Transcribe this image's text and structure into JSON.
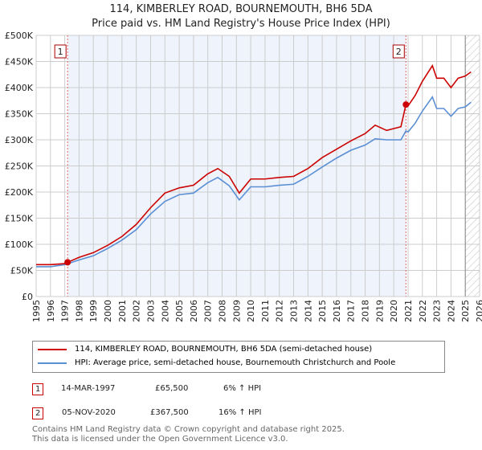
{
  "chart_data": {
    "type": "line",
    "title": "114, KIMBERLEY ROAD, BOURNEMOUTH, BH6 5DA",
    "subtitle": "Price paid vs. HM Land Registry's House Price Index (HPI)",
    "xlim": [
      1995,
      2026
    ],
    "ylim": [
      0,
      500000
    ],
    "yticks": [
      "£0",
      "£50K",
      "£100K",
      "£150K",
      "£200K",
      "£250K",
      "£300K",
      "£350K",
      "£400K",
      "£450K",
      "£500K"
    ],
    "xticks": [
      "1995",
      "1996",
      "1997",
      "1998",
      "1999",
      "2000",
      "2001",
      "2002",
      "2003",
      "2004",
      "2005",
      "2006",
      "2007",
      "2008",
      "2009",
      "2010",
      "2011",
      "2012",
      "2013",
      "2014",
      "2015",
      "2016",
      "2017",
      "2018",
      "2019",
      "2020",
      "2021",
      "2022",
      "2023",
      "2024",
      "2025",
      "2026"
    ],
    "series": [
      {
        "name": "114, KIMBERLEY ROAD, BOURNEMOUTH, BH6 5DA (semi-detached house)",
        "color": "#cc0000",
        "x": [
          1995,
          1996,
          1997,
          1997.2,
          1998,
          1999,
          2000,
          2001,
          2002,
          2003,
          2004,
          2005,
          2006,
          2007,
          2007.7,
          2008.5,
          2009.2,
          2010,
          2011,
          2012,
          2013,
          2014,
          2015,
          2016,
          2017,
          2018,
          2018.7,
          2019.5,
          2020.5,
          2020.85,
          2021,
          2021.5,
          2022,
          2022.7,
          2023,
          2023.5,
          2024,
          2024.5,
          2025,
          2025.4
        ],
        "y": [
          61000,
          61000,
          63000,
          65500,
          75000,
          84000,
          98000,
          115000,
          138000,
          170000,
          198000,
          208000,
          213000,
          235000,
          245000,
          230000,
          198000,
          225000,
          225000,
          228000,
          230000,
          245000,
          266000,
          282000,
          298000,
          312000,
          328000,
          318000,
          325000,
          367500,
          365000,
          385000,
          412000,
          442000,
          418000,
          418000,
          400000,
          418000,
          422000,
          430000
        ]
      },
      {
        "name": "HPI: Average price, semi-detached house, Bournemouth Christchurch and Poole",
        "color": "#5b8fd4",
        "x": [
          1995,
          1996,
          1997,
          1998,
          1999,
          2000,
          2001,
          2002,
          2003,
          2004,
          2005,
          2006,
          2007,
          2007.7,
          2008.5,
          2009.2,
          2010,
          2011,
          2012,
          2013,
          2014,
          2015,
          2016,
          2017,
          2018,
          2018.7,
          2019.5,
          2020.5,
          2020.85,
          2021,
          2021.5,
          2022,
          2022.7,
          2023,
          2023.5,
          2024,
          2024.5,
          2025,
          2025.4
        ],
        "y": [
          57000,
          57000,
          61000,
          70000,
          78000,
          92000,
          108000,
          128000,
          158000,
          182000,
          195000,
          198000,
          218000,
          228000,
          212000,
          185000,
          210000,
          210000,
          213000,
          215000,
          230000,
          248000,
          265000,
          280000,
          290000,
          302000,
          300000,
          300000,
          317000,
          315000,
          332000,
          355000,
          382000,
          360000,
          360000,
          345000,
          360000,
          363000,
          372000
        ]
      }
    ],
    "sales": [
      {
        "label": "1",
        "x": 1997.2,
        "y": 65500
      },
      {
        "label": "2",
        "x": 2020.85,
        "y": 367500
      }
    ],
    "hatch_from": 2025.0
  },
  "transactions": [
    {
      "num": "1",
      "date": "14-MAR-1997",
      "price": "£65,500",
      "hpi": "6% ↑ HPI"
    },
    {
      "num": "2",
      "date": "05-NOV-2020",
      "price": "£367,500",
      "hpi": "16% ↑ HPI"
    }
  ],
  "footer": {
    "line1": "Contains HM Land Registry data © Crown copyright and database right 2025.",
    "line2": "This data is licensed under the Open Government Licence v3.0."
  }
}
